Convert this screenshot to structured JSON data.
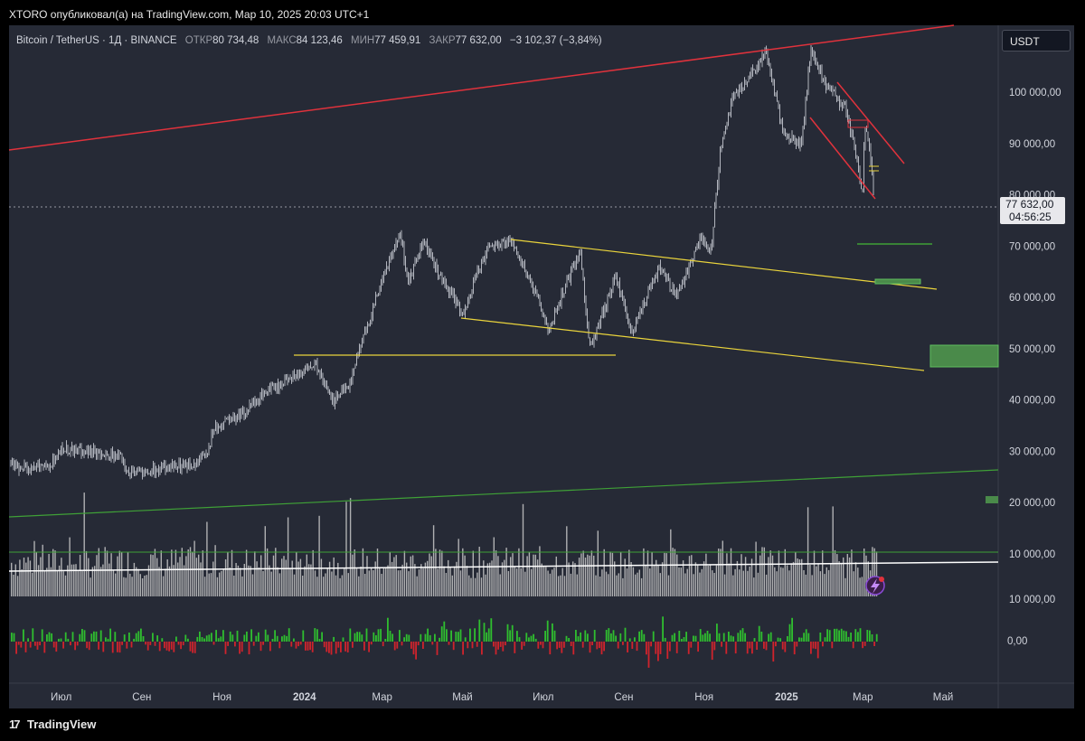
{
  "header": {
    "published": "XTORO опубликовал(а) на TradingView.com, Мар 10, 2025 20:03 UTC+1"
  },
  "legend": {
    "symbol": "Bitcoin / TetherUS · 1Д · BINANCE",
    "open_label": "ОТКР",
    "open_value": "80 734,48",
    "high_label": "МАКС",
    "high_value": "84 123,46",
    "low_label": "МИН",
    "low_value": "77 459,91",
    "close_label": "ЗАКР",
    "close_value": "77 632,00",
    "change": "−3 102,37 (−3,84%)"
  },
  "currency_button": "USDT",
  "price_tag": {
    "price": "77 632,00",
    "countdown": "04:56:25"
  },
  "footer": {
    "brand": "TradingView"
  },
  "colors": {
    "background": "#262a36",
    "candles": "#b2b5be",
    "resistance_line": "#e0323c",
    "channel_lines": "#ead43c",
    "support_line": "#3fa037",
    "zone_fill": "#4a8a4a",
    "volume_bars": "#c8c8c8",
    "histogram_up": "#2fbe2f",
    "histogram_down": "#d0232c"
  },
  "chart_data": {
    "type": "candlestick",
    "pair": "Bitcoin / TetherUS",
    "interval": "1Д",
    "exchange": "BINANCE",
    "y_axis_labels": [
      "100 000,00",
      "90 000,00",
      "80 000,00",
      "70 000,00",
      "60 000,00",
      "50 000,00",
      "40 000,00",
      "30 000,00",
      "20 000,00",
      "10 000,00"
    ],
    "y_ticks": [
      100000,
      90000,
      80000,
      70000,
      60000,
      50000,
      40000,
      30000,
      20000,
      10000
    ],
    "x_axis_labels": [
      "Июл",
      "Сен",
      "Ноя",
      "2024",
      "Мар",
      "Май",
      "Июл",
      "Сен",
      "Ноя",
      "2025",
      "Мар",
      "Май"
    ],
    "x_ticks": [
      "2023-07-01",
      "2023-09-01",
      "2023-11-01",
      "2024-01-01",
      "2024-03-01",
      "2024-05-01",
      "2024-07-01",
      "2024-09-01",
      "2024-11-01",
      "2025-01-01",
      "2025-03-01",
      "2025-05-01"
    ],
    "price_series": [
      {
        "x": "2023-06-01",
        "y": 27000
      },
      {
        "x": "2023-06-20",
        "y": 26500
      },
      {
        "x": "2023-07-01",
        "y": 30500
      },
      {
        "x": "2023-07-25",
        "y": 29800
      },
      {
        "x": "2023-08-15",
        "y": 29000
      },
      {
        "x": "2023-08-20",
        "y": 26000
      },
      {
        "x": "2023-09-15",
        "y": 26500
      },
      {
        "x": "2023-10-10",
        "y": 27500
      },
      {
        "x": "2023-10-20",
        "y": 30000
      },
      {
        "x": "2023-10-25",
        "y": 34500
      },
      {
        "x": "2023-11-15",
        "y": 37000
      },
      {
        "x": "2023-12-05",
        "y": 42000
      },
      {
        "x": "2023-12-20",
        "y": 44000
      },
      {
        "x": "2024-01-10",
        "y": 47000
      },
      {
        "x": "2024-01-23",
        "y": 39500
      },
      {
        "x": "2024-02-05",
        "y": 43000
      },
      {
        "x": "2024-02-15",
        "y": 52000
      },
      {
        "x": "2024-02-28",
        "y": 62000
      },
      {
        "x": "2024-03-14",
        "y": 73000
      },
      {
        "x": "2024-03-20",
        "y": 63000
      },
      {
        "x": "2024-04-01",
        "y": 71000
      },
      {
        "x": "2024-04-15",
        "y": 63000
      },
      {
        "x": "2024-05-01",
        "y": 57000
      },
      {
        "x": "2024-05-20",
        "y": 70000
      },
      {
        "x": "2024-06-07",
        "y": 71000
      },
      {
        "x": "2024-06-25",
        "y": 61000
      },
      {
        "x": "2024-07-05",
        "y": 54000
      },
      {
        "x": "2024-07-29",
        "y": 69000
      },
      {
        "x": "2024-08-05",
        "y": 50000
      },
      {
        "x": "2024-08-25",
        "y": 64000
      },
      {
        "x": "2024-09-06",
        "y": 53000
      },
      {
        "x": "2024-09-27",
        "y": 66000
      },
      {
        "x": "2024-10-10",
        "y": 60000
      },
      {
        "x": "2024-10-29",
        "y": 72000
      },
      {
        "x": "2024-11-05",
        "y": 69000
      },
      {
        "x": "2024-11-13",
        "y": 90000
      },
      {
        "x": "2024-11-22",
        "y": 99000
      },
      {
        "x": "2024-12-05",
        "y": 103000
      },
      {
        "x": "2024-12-17",
        "y": 108000
      },
      {
        "x": "2024-12-30",
        "y": 92000
      },
      {
        "x": "2025-01-13",
        "y": 90000
      },
      {
        "x": "2025-01-20",
        "y": 108500
      },
      {
        "x": "2025-02-01",
        "y": 101000
      },
      {
        "x": "2025-02-15",
        "y": 97000
      },
      {
        "x": "2025-02-25",
        "y": 86000
      },
      {
        "x": "2025-02-28",
        "y": 79000
      },
      {
        "x": "2025-03-02",
        "y": 94000
      },
      {
        "x": "2025-03-06",
        "y": 88000
      },
      {
        "x": "2025-03-10",
        "y": 77632
      }
    ],
    "current_price": 77632,
    "zones": [
      {
        "from": "2025-04-01",
        "to": "2025-05-31",
        "low": 47000,
        "high": 51000
      },
      {
        "from": "2025-03-11",
        "to": "2025-03-30",
        "low": 63000,
        "high": 63800
      }
    ],
    "levels": [
      {
        "price": 71000,
        "from": "2025-03-01",
        "to": "2025-04-10"
      }
    ]
  }
}
